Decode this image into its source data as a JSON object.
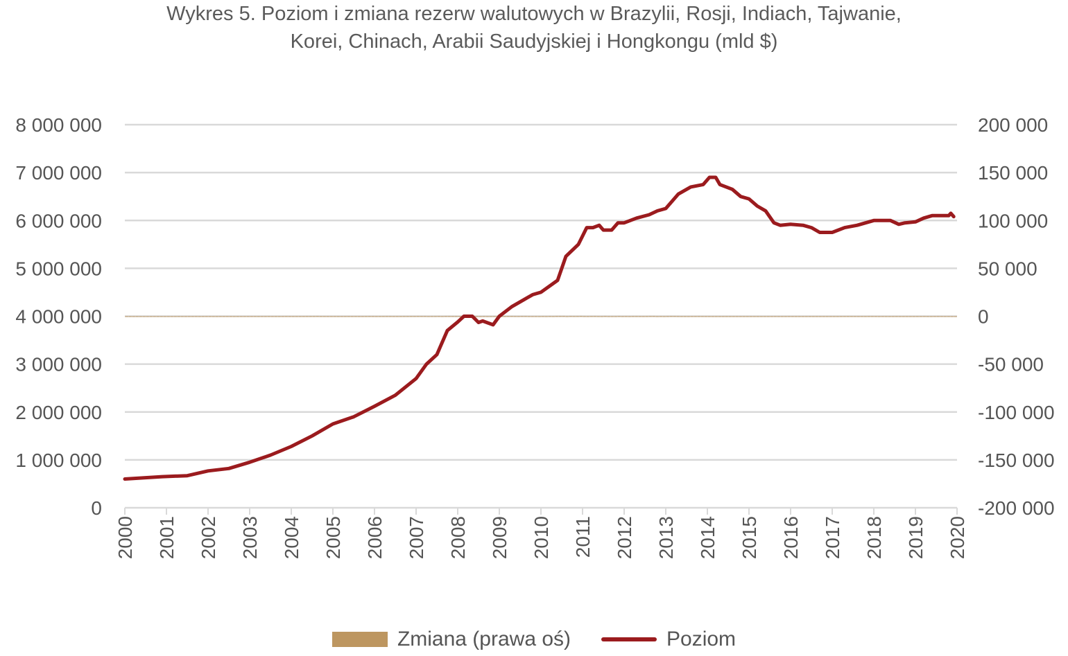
{
  "chart_data": {
    "type": "bar+line",
    "title_line1": "Wykres 5. Poziom i zmiana rezerw walutowych w Brazylii, Rosji, Indiach, Tajwanie,",
    "title_line2": "Korei, Chinach, Arabii Saudyjskiej i Hongkongu (mld $)",
    "left_axis": {
      "ylim": [
        0,
        8000000
      ],
      "ticks": [
        "0",
        "1 000 000",
        "2 000 000",
        "3 000 000",
        "4 000 000",
        "5 000 000",
        "6 000 000",
        "7 000 000",
        "8 000 000"
      ]
    },
    "right_axis": {
      "ylim": [
        -200000,
        200000
      ],
      "ticks": [
        "-200 000",
        "-150 000",
        "-100 000",
        "-50 000",
        "0",
        "50 000",
        "100 000",
        "150 000",
        "200 000"
      ]
    },
    "x_ticks": [
      "2000",
      "2001",
      "2002",
      "2003",
      "2004",
      "2005",
      "2006",
      "2007",
      "2008",
      "2009",
      "2010",
      "2011",
      "2012",
      "2013",
      "2014",
      "2015",
      "2016",
      "2017",
      "2018",
      "2019",
      "2020"
    ],
    "grid": true,
    "legend_position": "bottom",
    "series": [
      {
        "name": "Zmiana (prawa oś)",
        "type": "bar",
        "axis": "right",
        "color": "#bd9660",
        "start_year": 2000,
        "frequency": "monthly",
        "values": [
          5,
          5,
          2,
          5,
          2,
          0,
          -2,
          10,
          13,
          10,
          10,
          2,
          2,
          2,
          2,
          5,
          10,
          0,
          8,
          5,
          8,
          2,
          5,
          8,
          8,
          0,
          2,
          28,
          28,
          8,
          8,
          0,
          5,
          8,
          15,
          20,
          22,
          30,
          5,
          18,
          15,
          35,
          8,
          12,
          5,
          15,
          35,
          28,
          12,
          15,
          20,
          30,
          45,
          55,
          58,
          90,
          30,
          30,
          20,
          8,
          20,
          5,
          18,
          22,
          32,
          28,
          25,
          20,
          15,
          25,
          55,
          48,
          15,
          25,
          38,
          50,
          45,
          18,
          20,
          25,
          55,
          55,
          70,
          75,
          90,
          100,
          95,
          25,
          60,
          65,
          100,
          40,
          110,
          100,
          85,
          60,
          40,
          45,
          75,
          40,
          10,
          -175,
          -30,
          45,
          -95,
          -10,
          5,
          -20,
          55,
          60,
          90,
          130,
          70,
          50,
          110,
          95,
          30,
          20,
          15,
          0,
          40,
          -70,
          70,
          25,
          130,
          150,
          145,
          -15,
          120,
          85,
          90,
          165,
          60,
          20,
          85,
          90,
          30,
          -105,
          100,
          -50,
          -90,
          -45,
          85,
          10,
          30,
          -115,
          55,
          50,
          30,
          15,
          35,
          105,
          120,
          -45,
          35,
          -25,
          60,
          130,
          110,
          50,
          5,
          5,
          0,
          30,
          40,
          45,
          35,
          15,
          15,
          -20,
          -110,
          -65,
          -35,
          -60,
          -50,
          -55,
          -90,
          -35,
          -30,
          -45,
          -25,
          -35,
          -60,
          -100,
          -65,
          -40,
          -45,
          15,
          -120,
          -125,
          -40,
          15,
          10,
          -15,
          -35,
          0,
          -5,
          5,
          -10,
          -35,
          -55,
          -85,
          -55,
          0,
          2,
          -2,
          15,
          25,
          35,
          35,
          30,
          15,
          25,
          15,
          45,
          50,
          30,
          -10,
          20,
          -5,
          -15,
          -20,
          5,
          0,
          -10,
          -20,
          -50,
          -10,
          5,
          20,
          50,
          10,
          -15,
          30,
          45,
          50,
          20,
          25,
          -90,
          -15
        ]
      },
      {
        "name": "Poziom",
        "type": "line",
        "axis": "left",
        "color": "#9b1b1e",
        "x": [
          2000,
          2000.9,
          2001.5,
          2002,
          2002.5,
          2003,
          2003.5,
          2004,
          2004.5,
          2005,
          2005.5,
          2006,
          2006.5,
          2007,
          2007.25,
          2007.5,
          2007.75,
          2008,
          2008.15,
          2008.35,
          2008.5,
          2008.6,
          2008.85,
          2009,
          2009.3,
          2009.6,
          2009.8,
          2010,
          2010.4,
          2010.6,
          2010.9,
          2011.1,
          2011.25,
          2011.4,
          2011.5,
          2011.7,
          2011.85,
          2012,
          2012.3,
          2012.6,
          2012.8,
          2013,
          2013.3,
          2013.6,
          2013.9,
          2014.05,
          2014.2,
          2014.3,
          2014.6,
          2014.8,
          2015,
          2015.2,
          2015.4,
          2015.6,
          2015.75,
          2016,
          2016.3,
          2016.5,
          2016.7,
          2017,
          2017.3,
          2017.6,
          2018,
          2018.4,
          2018.6,
          2018.75,
          2019,
          2019.2,
          2019.4,
          2019.8,
          2019.85,
          2019.92
        ],
        "values": [
          600000,
          650000,
          670000,
          770000,
          820000,
          950000,
          1100000,
          1280000,
          1500000,
          1750000,
          1900000,
          2120000,
          2350000,
          2700000,
          3000000,
          3200000,
          3700000,
          3880000,
          4000000,
          4000000,
          3870000,
          3900000,
          3820000,
          4000000,
          4200000,
          4350000,
          4450000,
          4500000,
          4750000,
          5250000,
          5500000,
          5850000,
          5850000,
          5900000,
          5800000,
          5800000,
          5950000,
          5950000,
          6050000,
          6120000,
          6200000,
          6250000,
          6550000,
          6700000,
          6750000,
          6900000,
          6900000,
          6750000,
          6650000,
          6500000,
          6450000,
          6300000,
          6200000,
          5950000,
          5900000,
          5920000,
          5900000,
          5850000,
          5750000,
          5750000,
          5850000,
          5900000,
          6000000,
          6000000,
          5920000,
          5950000,
          5970000,
          6050000,
          6100000,
          6100000,
          6150000,
          6080000
        ]
      }
    ]
  }
}
